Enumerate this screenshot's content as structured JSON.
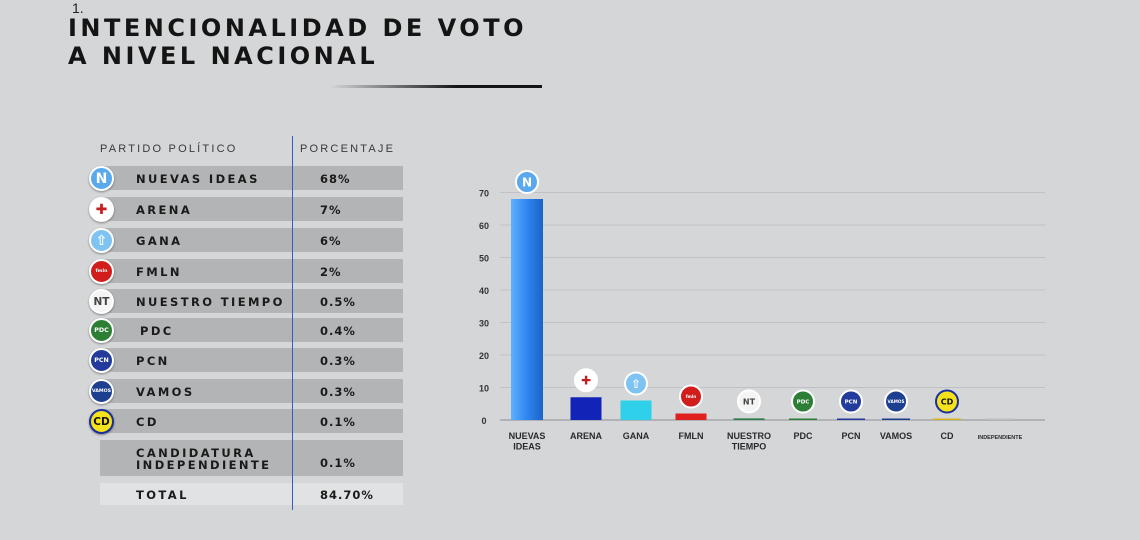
{
  "header": {
    "mark": "1.",
    "title_line1": "INTENCIONALIDAD DE VOTO",
    "title_line2": "A NIVEL NACIONAL"
  },
  "table": {
    "col_party": "PARTIDO POLÍTICO",
    "col_pct": "PORCENTAJE",
    "rows": [
      {
        "name": "NUEVAS IDEAS",
        "pct": "68%"
      },
      {
        "name": "ARENA",
        "pct": "7%"
      },
      {
        "name": "GANA",
        "pct": "6%"
      },
      {
        "name": "FMLN",
        "pct": "2%"
      },
      {
        "name": "NUESTRO TIEMPO",
        "pct": "0.5%"
      },
      {
        "name": "PDC",
        "pct": "0.4%"
      },
      {
        "name": "PCN",
        "pct": "0.3%"
      },
      {
        "name": "VAMOS",
        "pct": "0.3%"
      },
      {
        "name": "CD",
        "pct": "0.1%"
      },
      {
        "name_line1": "CANDIDATURA",
        "name_line2": "INDEPENDIENTE",
        "pct": "0.1%"
      }
    ],
    "total_label": "TOTAL",
    "total_value": "84.70%"
  },
  "logos": {
    "nuevas_ideas": {
      "text": "N",
      "bg": "#5aa9ec",
      "fg": "#ffffff"
    },
    "arena": {
      "text": "✚",
      "bg": "#ffffff",
      "fg": "#c41f1f"
    },
    "gana": {
      "text": "⇧",
      "bg": "#7ec3f1",
      "fg": "#ffffff"
    },
    "fmln": {
      "text": "fmln",
      "bg": "#d21d1d",
      "fg": "#ffffff"
    },
    "nuestro_tiempo": {
      "text": "NT",
      "bg": "#f4f4f4",
      "fg": "#444444"
    },
    "pdc": {
      "text": "PDC",
      "bg": "#2e7f36",
      "fg": "#ffffff"
    },
    "pcn": {
      "text": "PCN",
      "bg": "#233c9b",
      "fg": "#ffffff"
    },
    "vamos": {
      "text": "VAMOS",
      "bg": "#1d3f8f",
      "fg": "#ffffff"
    },
    "cd": {
      "text": "CD",
      "bg": "#f6e21a",
      "fg": "#111111",
      "ring": "#1b2f9a"
    }
  },
  "chart_data": {
    "type": "bar",
    "categories": [
      "NUEVAS IDEAS",
      "ARENA",
      "GANA",
      "FMLN",
      "NUESTRO TIEMPO",
      "PDC",
      "PCN",
      "VAMOS",
      "CD",
      "INDEPENDIENTE"
    ],
    "category_lines": [
      [
        "NUEVAS",
        "IDEAS"
      ],
      [
        "ARENA"
      ],
      [
        "GANA"
      ],
      [
        "FMLN"
      ],
      [
        "NUESTRO",
        "TIEMPO"
      ],
      [
        "PDC"
      ],
      [
        "PCN"
      ],
      [
        "VAMOS"
      ],
      [
        "CD"
      ],
      [
        "INDEPENDIENTE"
      ]
    ],
    "values": [
      68,
      7,
      6,
      2,
      0.5,
      0.4,
      0.3,
      0.3,
      0.1,
      0.1
    ],
    "bar_colors": [
      "#2f86ef",
      "#1224b8",
      "#2fd0ea",
      "#e01f1f",
      "#2e7a4a",
      "#2c7d36",
      "#23389a",
      "#1c3d8f",
      "#d6b41a",
      "#bdbdbd"
    ],
    "logo_keys": [
      "nuevas_ideas",
      "arena",
      "gana",
      "fmln",
      "nuestro_tiempo",
      "pdc",
      "pcn",
      "vamos",
      "cd",
      null
    ],
    "yticks": [
      0,
      10,
      20,
      30,
      40,
      50,
      60,
      70
    ],
    "ylim": [
      0,
      70
    ],
    "grid": true,
    "title": "",
    "xlabel": "",
    "ylabel": ""
  }
}
